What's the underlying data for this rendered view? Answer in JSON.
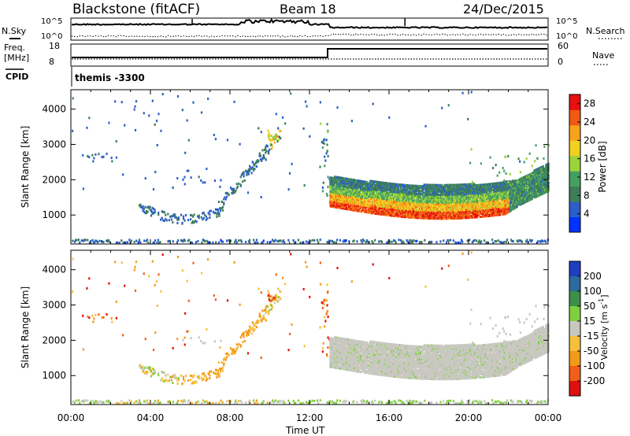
{
  "header": {
    "station": "Blackstone (fitACF)",
    "beam": "Beam 18",
    "date": "24/Dec/2015"
  },
  "summary_panels": {
    "nsky_label": "N.Sky",
    "nsearch_label": "N.Search",
    "freq_label": "Freq.",
    "freq_unit": "[MHz]",
    "nave_label": "Nave",
    "cpid_label": "CPID",
    "noise_ticks": [
      "10^5",
      "10^0"
    ],
    "freq_ticks": [
      "18",
      "8"
    ],
    "nave_ticks": [
      "60",
      "0"
    ],
    "cpid_value": "themis -3300"
  },
  "chart_data": [
    {
      "type": "heatmap",
      "name": "power",
      "ylabel": "Slant Range [km]",
      "xlabel": "Time UT",
      "x_ticks": [
        "00:00",
        "04:00",
        "08:00",
        "12:00",
        "16:00",
        "20:00",
        "00:00"
      ],
      "xlim_hours": [
        0,
        24
      ],
      "ylim_km": [
        180,
        4550
      ],
      "y_ticks": [
        1000,
        2000,
        3000,
        4000
      ],
      "colorbar": {
        "label": "Power [dB]",
        "ticks": [
          4,
          8,
          12,
          16,
          20,
          24,
          28
        ],
        "range": [
          0,
          30
        ],
        "colors": [
          "#0033ff",
          "#2b5fc7",
          "#3f7d5a",
          "#44a060",
          "#9bd33b",
          "#f0d020",
          "#f7a21b",
          "#f05a14",
          "#e81010"
        ]
      },
      "features": [
        {
          "desc": "ground band",
          "t": [
            0,
            24
          ],
          "range_km": [
            200,
            300
          ],
          "power_db": [
            3,
            10
          ]
        },
        {
          "desc": "early arc",
          "t": [
            3.4,
            7.5
          ],
          "range_km": [
            700,
            1200
          ],
          "power_db": [
            4,
            8
          ]
        },
        {
          "desc": "rising echo",
          "t": [
            7.5,
            11.0
          ],
          "range_km": [
            1200,
            3400
          ],
          "power_db": [
            4,
            20
          ]
        },
        {
          "desc": "main band",
          "t": [
            13.0,
            24.0
          ],
          "range_km": [
            900,
            2400
          ],
          "power_db": [
            8,
            30
          ]
        }
      ]
    },
    {
      "type": "heatmap",
      "name": "velocity",
      "ylabel": "Slant Range [km]",
      "xlabel": "Time UT",
      "x_ticks": [
        "00:00",
        "04:00",
        "08:00",
        "12:00",
        "16:00",
        "20:00",
        "00:00"
      ],
      "xlim_hours": [
        0,
        24
      ],
      "ylim_km": [
        180,
        4550
      ],
      "y_ticks": [
        1000,
        2000,
        3000,
        4000
      ],
      "colorbar": {
        "label": "Velocity [m s^-1]",
        "ticks": [
          200,
          100,
          50,
          15,
          -15,
          -50,
          -100,
          -200
        ],
        "colors": [
          "#1f3fbf",
          "#2e6a9e",
          "#3d8f4a",
          "#7fcf3f",
          "#c8c8c0",
          "#f5c03a",
          "#f39a1a",
          "#f0601a",
          "#e01010"
        ]
      },
      "features": [
        {
          "desc": "ground band",
          "t": [
            0,
            24
          ],
          "range_km": [
            200,
            300
          ],
          "velocity": "near 0"
        },
        {
          "desc": "early arc",
          "t": [
            3.4,
            7.5
          ],
          "range_km": [
            700,
            1200
          ],
          "velocity": "-15 to -50"
        },
        {
          "desc": "rising echo",
          "t": [
            7.5,
            11.0
          ],
          "range_km": [
            1200,
            3400
          ],
          "velocity": "-50 to -200"
        },
        {
          "desc": "main band",
          "t": [
            13.0,
            24.0
          ],
          "range_km": [
            900,
            2400
          ],
          "velocity": "-15 to 15"
        }
      ]
    }
  ]
}
